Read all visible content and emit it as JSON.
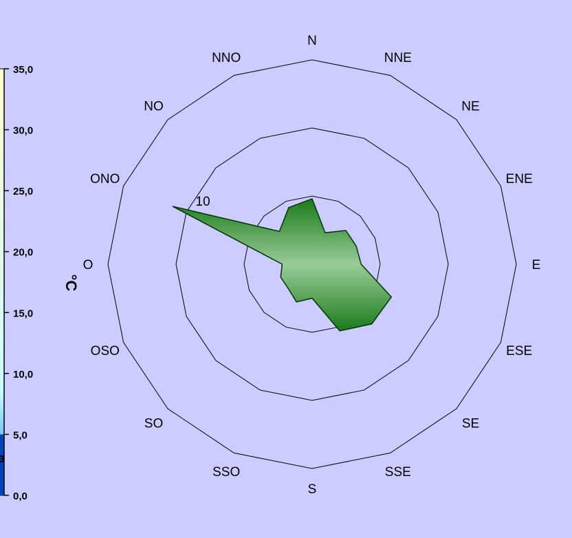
{
  "colors": {
    "background": "#ccccff",
    "rose_fill_light": "#99cc99",
    "rose_fill_dark": "#1a7a1a",
    "rose_stroke": "#003300",
    "ring_stroke": "#000000",
    "scale_top": "#ffffcc",
    "scale_bottom": "#0044bb"
  },
  "temperature_scale": {
    "unit_label": "°C",
    "ticks": [
      "0,0",
      "5,0",
      "10,0",
      "15,0",
      "20,0",
      "25,0",
      "30,0",
      "35,0"
    ],
    "fill_level_top": 5.0,
    "partial_value_text": "3"
  },
  "chart_data": {
    "type": "radar",
    "directions": [
      "N",
      "NNE",
      "NE",
      "ENE",
      "E",
      "ESE",
      "SE",
      "SSE",
      "S",
      "SSO",
      "SO",
      "OSO",
      "O",
      "ONO",
      "NO",
      "NNO"
    ],
    "ring_label": "10",
    "rings": [
      5,
      10,
      15
    ],
    "range": [
      0,
      15
    ],
    "series": [
      {
        "values": [
          4.8,
          2.5,
          3.5,
          3.5,
          3.6,
          6.3,
          6.2,
          5.3,
          2.5,
          3.0,
          2.5,
          2.5,
          2.2,
          11.1,
          3.4,
          4.5
        ]
      }
    ]
  }
}
